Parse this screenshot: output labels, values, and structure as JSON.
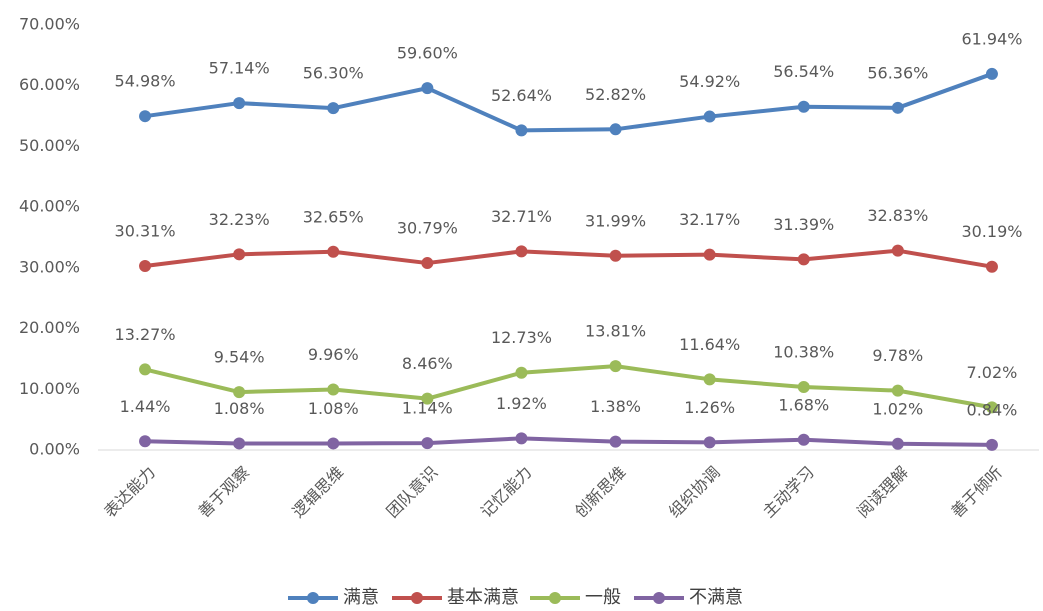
{
  "chart_data": {
    "type": "line",
    "categories": [
      "表达能力",
      "善于观察",
      "逻辑思维",
      "团队意识",
      "记忆能力",
      "创新思维",
      "组织协调",
      "主动学习",
      "阅读理解",
      "善于倾听"
    ],
    "series": [
      {
        "name": "满意",
        "color": "#4f81bd",
        "values": [
          54.98,
          57.14,
          56.3,
          59.6,
          52.64,
          52.82,
          54.92,
          56.54,
          56.36,
          61.94
        ],
        "value_labels": [
          "54.98%",
          "57.14%",
          "56.30%",
          "59.60%",
          "52.64%",
          "52.82%",
          "54.92%",
          "56.54%",
          "56.36%",
          "61.94%"
        ]
      },
      {
        "name": "基本满意",
        "color": "#c0504d",
        "values": [
          30.31,
          32.23,
          32.65,
          30.79,
          32.71,
          31.99,
          32.17,
          31.39,
          32.83,
          30.19
        ],
        "value_labels": [
          "30.31%",
          "32.23%",
          "32.65%",
          "30.79%",
          "32.71%",
          "31.99%",
          "32.17%",
          "31.39%",
          "32.83%",
          "30.19%"
        ]
      },
      {
        "name": "一般",
        "color": "#9bbb59",
        "values": [
          13.27,
          9.54,
          9.96,
          8.46,
          12.73,
          13.81,
          11.64,
          10.38,
          9.78,
          7.02
        ],
        "value_labels": [
          "13.27%",
          "9.54%",
          "9.96%",
          "8.46%",
          "12.73%",
          "13.81%",
          "11.64%",
          "10.38%",
          "9.78%",
          "7.02%"
        ]
      },
      {
        "name": "不满意",
        "color": "#8064a2",
        "values": [
          1.44,
          1.08,
          1.08,
          1.14,
          1.92,
          1.38,
          1.26,
          1.68,
          1.02,
          0.84
        ],
        "value_labels": [
          "1.44%",
          "1.08%",
          "1.08%",
          "1.14%",
          "1.92%",
          "1.38%",
          "1.26%",
          "1.68%",
          "1.02%",
          "0.84%"
        ]
      }
    ],
    "ylim": [
      0,
      70
    ],
    "yticks": [
      {
        "value": 0,
        "label": "0.00%"
      },
      {
        "value": 10,
        "label": "10.00%"
      },
      {
        "value": 20,
        "label": "20.00%"
      },
      {
        "value": 30,
        "label": "30.00%"
      },
      {
        "value": 40,
        "label": "40.00%"
      },
      {
        "value": 50,
        "label": "50.00%"
      },
      {
        "value": 60,
        "label": "60.00%"
      },
      {
        "value": 70,
        "label": "70.00%"
      }
    ],
    "grid": false,
    "legend": "bottom"
  }
}
